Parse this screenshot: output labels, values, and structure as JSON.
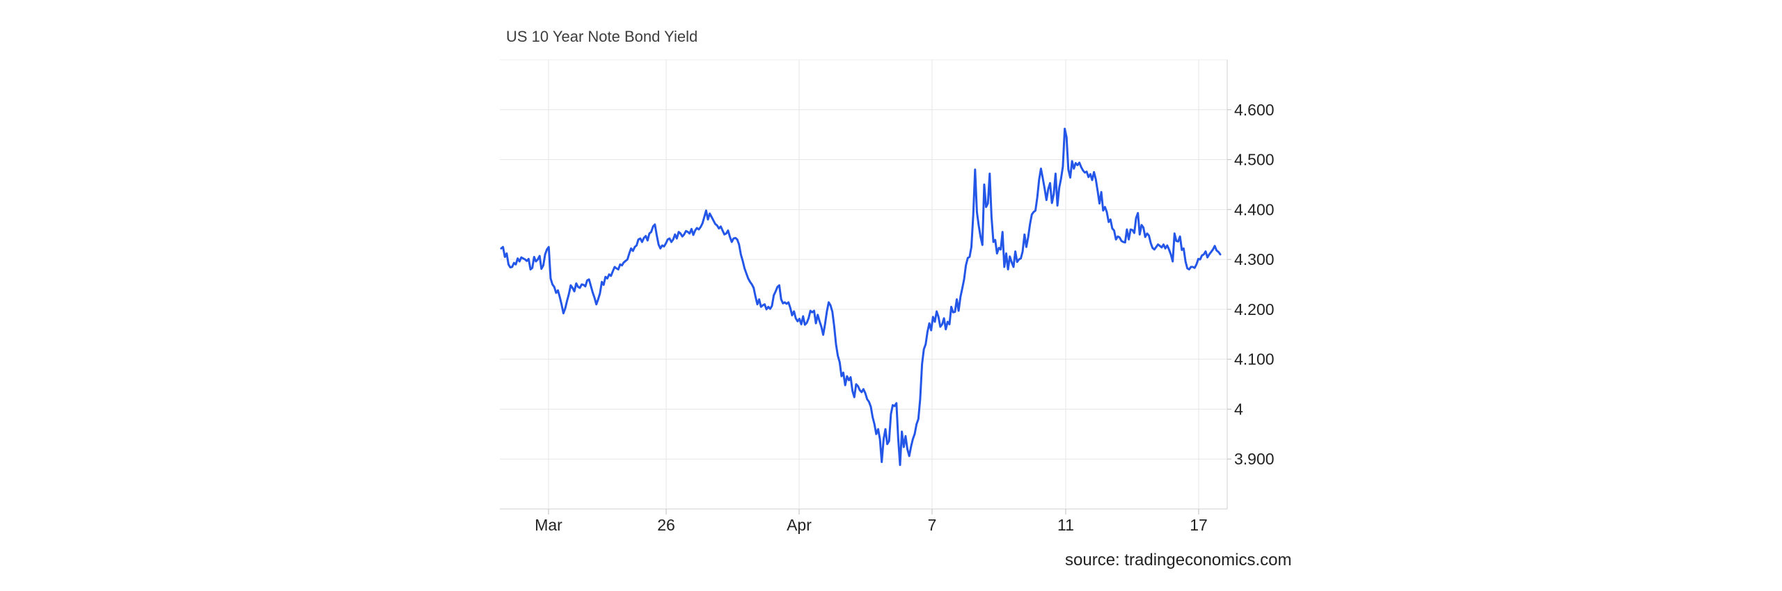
{
  "chart_data": {
    "type": "line",
    "title": "US 10 Year Note Bond Yield",
    "source": "source: tradingeconomics.com",
    "x_tick_labels": [
      "Mar",
      "26",
      "Apr",
      "7",
      "11",
      "17"
    ],
    "y_tick_labels": [
      "3.900",
      "4",
      "4.100",
      "4.200",
      "4.300",
      "4.400",
      "4.500",
      "4.600"
    ],
    "ylim": [
      3.8,
      4.7
    ],
    "y_axis_position": "right",
    "grid": true,
    "colors": {
      "line": "#2457e8",
      "grid": "#e6e6e6",
      "axis": "#cccccc"
    },
    "series": [
      {
        "values": [
          4.322,
          4.325,
          4.305,
          4.312,
          4.29,
          4.284,
          4.285,
          4.293,
          4.29,
          4.302,
          4.296,
          4.304,
          4.302,
          4.3,
          4.297,
          4.301,
          4.28,
          4.283,
          4.305,
          4.296,
          4.3,
          4.307,
          4.281,
          4.288,
          4.31,
          4.32,
          4.325,
          4.262,
          4.25,
          4.245,
          4.233,
          4.238,
          4.225,
          4.21,
          4.192,
          4.202,
          4.217,
          4.231,
          4.248,
          4.243,
          4.236,
          4.252,
          4.245,
          4.243,
          4.25,
          4.249,
          4.246,
          4.258,
          4.26,
          4.247,
          4.234,
          4.223,
          4.21,
          4.22,
          4.232,
          4.255,
          4.249,
          4.265,
          4.262,
          4.27,
          4.267,
          4.276,
          4.285,
          4.282,
          4.28,
          4.29,
          4.288,
          4.294,
          4.297,
          4.3,
          4.312,
          4.322,
          4.317,
          4.325,
          4.328,
          4.34,
          4.342,
          4.335,
          4.343,
          4.347,
          4.338,
          4.352,
          4.355,
          4.366,
          4.37,
          4.349,
          4.33,
          4.322,
          4.328,
          4.326,
          4.332,
          4.34,
          4.342,
          4.335,
          4.34,
          4.35,
          4.342,
          4.355,
          4.352,
          4.346,
          4.35,
          4.357,
          4.355,
          4.352,
          4.361,
          4.349,
          4.358,
          4.363,
          4.36,
          4.365,
          4.372,
          4.385,
          4.398,
          4.38,
          4.392,
          4.385,
          4.378,
          4.371,
          4.368,
          4.362,
          4.366,
          4.358,
          4.35,
          4.352,
          4.358,
          4.345,
          4.335,
          4.342,
          4.343,
          4.34,
          4.33,
          4.31,
          4.297,
          4.282,
          4.272,
          4.262,
          4.255,
          4.25,
          4.243,
          4.225,
          4.21,
          4.22,
          4.205,
          4.208,
          4.21,
          4.2,
          4.205,
          4.201,
          4.207,
          4.228,
          4.236,
          4.245,
          4.248,
          4.22,
          4.212,
          4.214,
          4.211,
          4.214,
          4.203,
          4.188,
          4.196,
          4.182,
          4.176,
          4.181,
          4.17,
          4.186,
          4.169,
          4.173,
          4.182,
          4.197,
          4.194,
          4.197,
          4.172,
          4.189,
          4.176,
          4.165,
          4.149,
          4.17,
          4.196,
          4.214,
          4.208,
          4.195,
          4.166,
          4.13,
          4.107,
          4.094,
          4.066,
          4.073,
          4.048,
          4.066,
          4.058,
          4.064,
          4.036,
          4.024,
          4.05,
          4.046,
          4.038,
          4.034,
          4.04,
          4.032,
          4.02,
          4.015,
          4.005,
          3.984,
          3.97,
          3.95,
          3.96,
          3.94,
          3.894,
          3.94,
          3.96,
          3.93,
          3.936,
          3.99,
          4.008,
          4.006,
          4.012,
          3.94,
          3.888,
          3.955,
          3.924,
          3.946,
          3.92,
          3.906,
          3.925,
          3.94,
          3.95,
          3.97,
          3.98,
          4.02,
          4.09,
          4.12,
          4.13,
          4.155,
          4.172,
          4.158,
          4.185,
          4.175,
          4.196,
          4.185,
          4.165,
          4.17,
          4.182,
          4.16,
          4.175,
          4.17,
          4.205,
          4.194,
          4.195,
          4.22,
          4.197,
          4.225,
          4.242,
          4.26,
          4.288,
          4.303,
          4.305,
          4.325,
          4.39,
          4.48,
          4.395,
          4.368,
          4.345,
          4.329,
          4.45,
          4.405,
          4.412,
          4.472,
          4.385,
          4.335,
          4.339,
          4.312,
          4.323,
          4.32,
          4.355,
          4.285,
          4.312,
          4.28,
          4.306,
          4.294,
          4.285,
          4.316,
          4.295,
          4.3,
          4.302,
          4.316,
          4.35,
          4.325,
          4.344,
          4.37,
          4.39,
          4.395,
          4.398,
          4.425,
          4.46,
          4.482,
          4.463,
          4.442,
          4.419,
          4.441,
          4.453,
          4.413,
          4.431,
          4.472,
          4.408,
          4.444,
          4.462,
          4.486,
          4.562,
          4.545,
          4.48,
          4.464,
          4.497,
          4.482,
          4.493,
          4.489,
          4.494,
          4.485,
          4.478,
          4.474,
          4.476,
          4.465,
          4.471,
          4.459,
          4.475,
          4.46,
          4.437,
          4.412,
          4.435,
          4.398,
          4.405,
          4.395,
          4.375,
          4.38,
          4.362,
          4.358,
          4.34,
          4.346,
          4.344,
          4.337,
          4.335,
          4.334,
          4.36,
          4.34,
          4.36,
          4.359,
          4.353,
          4.383,
          4.393,
          4.35,
          4.369,
          4.364,
          4.345,
          4.352,
          4.348,
          4.333,
          4.323,
          4.32,
          4.325,
          4.33,
          4.327,
          4.324,
          4.33,
          4.322,
          4.328,
          4.32,
          4.31,
          4.296,
          4.352,
          4.337,
          4.336,
          4.346,
          4.319,
          4.322,
          4.296,
          4.282,
          4.28,
          4.285,
          4.285,
          4.283,
          4.29,
          4.301,
          4.3,
          4.308,
          4.31,
          4.316,
          4.304,
          4.31,
          4.315,
          4.32,
          4.327,
          4.318,
          4.315,
          4.31
        ]
      }
    ]
  }
}
